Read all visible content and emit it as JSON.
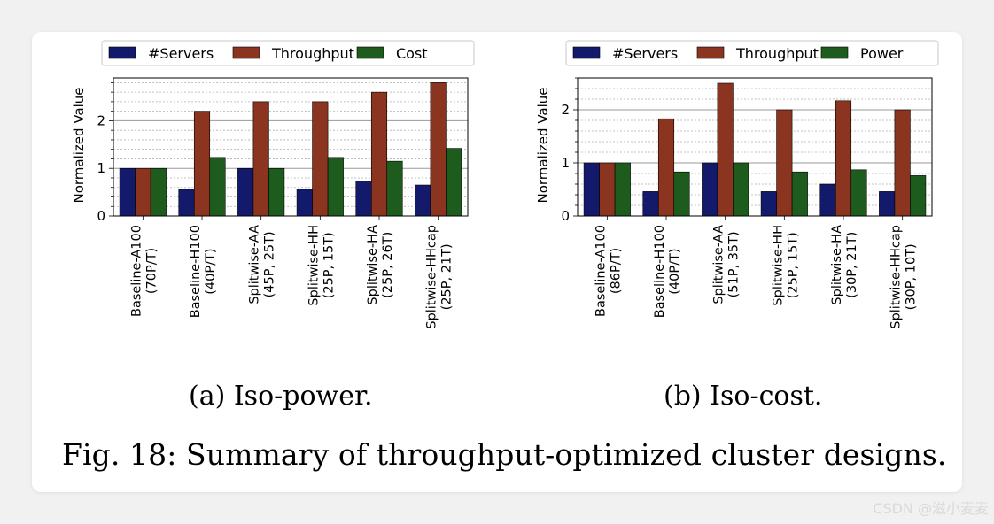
{
  "colors": {
    "servers": "#13196b",
    "throughput": "#8b3520",
    "third": "#1d5c1c",
    "edge": "#000000"
  },
  "chart_data": [
    {
      "type": "bar",
      "id": "a",
      "ylabel": "Normalized Value",
      "ylim": [
        0,
        2.9
      ],
      "yticks": [
        0,
        1,
        2
      ],
      "minor_step": 0.2,
      "legend": [
        "#Servers",
        "Throughput",
        "Cost"
      ],
      "legend_position": "top",
      "categories": [
        [
          "Baseline-A100",
          "(70P/T)"
        ],
        [
          "Baseline-H100",
          "(40P/T)"
        ],
        [
          "Splitwise-AA",
          "(45P, 25T)"
        ],
        [
          "Splitwise-HH",
          "(25P, 15T)"
        ],
        [
          "Splitwise-HA",
          "(25P, 26T)"
        ],
        [
          "Splitwise-HHcap",
          "(25P, 21T)"
        ]
      ],
      "series": [
        {
          "name": "#Servers",
          "values": [
            1.0,
            0.56,
            1.0,
            0.56,
            0.73,
            0.65
          ]
        },
        {
          "name": "Throughput",
          "values": [
            1.0,
            2.2,
            2.4,
            2.4,
            2.6,
            2.8
          ]
        },
        {
          "name": "Cost",
          "values": [
            1.0,
            1.23,
            1.0,
            1.23,
            1.15,
            1.42
          ]
        }
      ]
    },
    {
      "type": "bar",
      "id": "b",
      "ylabel": "Normalized Value",
      "ylim": [
        0,
        2.6
      ],
      "yticks": [
        0,
        1,
        2
      ],
      "minor_step": 0.2,
      "legend": [
        "#Servers",
        "Throughput",
        "Power"
      ],
      "legend_position": "top",
      "categories": [
        [
          "Baseline-A100",
          "(86P/T)"
        ],
        [
          "Baseline-H100",
          "(40P/T)"
        ],
        [
          "Splitwise-AA",
          "(51P, 35T)"
        ],
        [
          "Splitwise-HH",
          "(25P, 15T)"
        ],
        [
          "Splitwise-HA",
          "(30P, 21T)"
        ],
        [
          "Splitwise-HHcap",
          "(30P, 10T)"
        ]
      ],
      "series": [
        {
          "name": "#Servers",
          "values": [
            1.0,
            0.46,
            1.0,
            0.46,
            0.6,
            0.46
          ]
        },
        {
          "name": "Throughput",
          "values": [
            1.0,
            1.83,
            2.5,
            2.0,
            2.17,
            2.0
          ]
        },
        {
          "name": "Power",
          "values": [
            1.0,
            0.83,
            1.0,
            0.83,
            0.87,
            0.76
          ]
        }
      ]
    }
  ],
  "captions": {
    "sub_a": "(a) Iso-power.",
    "sub_b": "(b) Iso-cost.",
    "figure": "Fig. 18: Summary of throughput-optimized cluster designs."
  },
  "watermark": "CSDN @滋小麦麦"
}
